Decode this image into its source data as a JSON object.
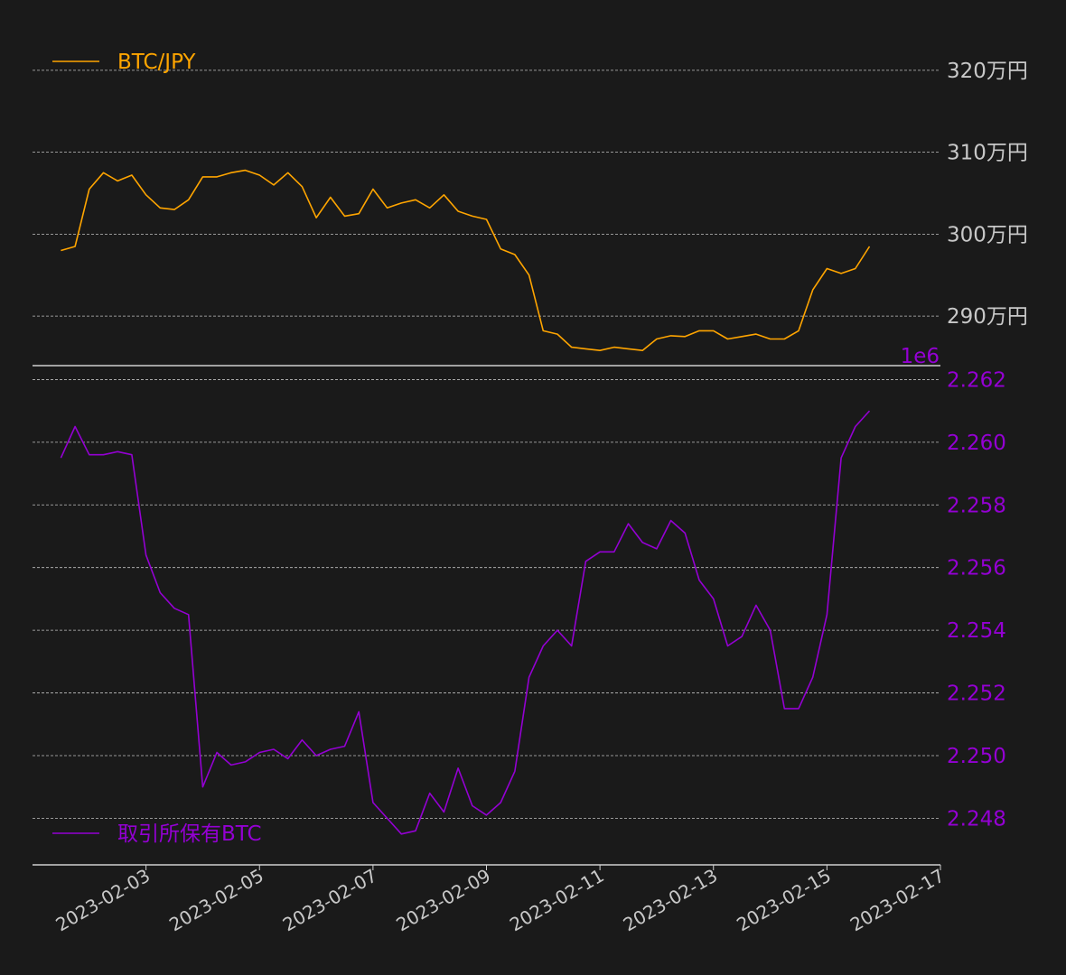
{
  "chart_data": [
    {
      "type": "line",
      "series": [
        {
          "name": "BTC/JPY",
          "color": "#ffa500",
          "x": [
            "2023-02-01T12:00",
            "2023-02-01T18:00",
            "2023-02-02T00:00",
            "2023-02-02T06:00",
            "2023-02-02T12:00",
            "2023-02-02T18:00",
            "2023-02-03T00:00",
            "2023-02-03T06:00",
            "2023-02-03T12:00",
            "2023-02-03T18:00",
            "2023-02-04T00:00",
            "2023-02-04T06:00",
            "2023-02-04T12:00",
            "2023-02-04T18:00",
            "2023-02-05T00:00",
            "2023-02-05T06:00",
            "2023-02-05T12:00",
            "2023-02-05T18:00",
            "2023-02-06T00:00",
            "2023-02-06T06:00",
            "2023-02-06T12:00",
            "2023-02-06T18:00",
            "2023-02-07T00:00",
            "2023-02-07T06:00",
            "2023-02-07T12:00",
            "2023-02-07T18:00",
            "2023-02-08T00:00",
            "2023-02-08T06:00",
            "2023-02-08T12:00",
            "2023-02-08T18:00",
            "2023-02-09T00:00",
            "2023-02-09T06:00",
            "2023-02-09T12:00",
            "2023-02-09T18:00",
            "2023-02-10T00:00",
            "2023-02-10T06:00",
            "2023-02-10T12:00",
            "2023-02-10T18:00",
            "2023-02-11T00:00",
            "2023-02-11T06:00",
            "2023-02-11T12:00",
            "2023-02-11T18:00",
            "2023-02-12T00:00",
            "2023-02-12T06:00",
            "2023-02-12T12:00",
            "2023-02-12T18:00",
            "2023-02-13T00:00",
            "2023-02-13T06:00",
            "2023-02-13T12:00",
            "2023-02-13T18:00",
            "2023-02-14T00:00",
            "2023-02-14T06:00",
            "2023-02-14T12:00",
            "2023-02-14T18:00",
            "2023-02-15T00:00",
            "2023-02-15T06:00",
            "2023-02-15T12:00",
            "2023-02-15T18:00"
          ],
          "values": [
            2980000,
            2985000,
            3055000,
            3075000,
            3065000,
            3072000,
            3048000,
            3032000,
            3030000,
            3042000,
            3070000,
            3070000,
            3075000,
            3078000,
            3072000,
            3060000,
            3075000,
            3058000,
            3020000,
            3045000,
            3022000,
            3025000,
            3055000,
            3032000,
            3038000,
            3042000,
            3032000,
            3048000,
            3028000,
            3022000,
            3018000,
            2982000,
            2975000,
            2950000,
            2882000,
            2878000,
            2862000,
            2860000,
            2858000,
            2862000,
            2860000,
            2858000,
            2872000,
            2876000,
            2875000,
            2882000,
            2882000,
            2872000,
            2875000,
            2878000,
            2872000,
            2872000,
            2882000,
            2932000,
            2958000,
            2952000,
            2958000,
            2985000
          ]
        }
      ],
      "xlim": [
        "2023-02-01T00:00",
        "2023-02-17T00:00"
      ],
      "ylim": [
        2845000,
        3255000
      ],
      "y_ticks": [
        {
          "value": 2900000,
          "label": "290万円"
        },
        {
          "value": 3000000,
          "label": "300万円"
        },
        {
          "value": 3100000,
          "label": "310万円"
        },
        {
          "value": 3200000,
          "label": "320万円"
        }
      ],
      "grid": true,
      "legend": "top-left"
    },
    {
      "type": "line",
      "series": [
        {
          "name": "取引所保有BTC",
          "color": "#9400d3",
          "x": [
            "2023-02-01T12:00",
            "2023-02-01T18:00",
            "2023-02-02T00:00",
            "2023-02-02T06:00",
            "2023-02-02T12:00",
            "2023-02-02T18:00",
            "2023-02-03T00:00",
            "2023-02-03T06:00",
            "2023-02-03T12:00",
            "2023-02-03T18:00",
            "2023-02-04T00:00",
            "2023-02-04T06:00",
            "2023-02-04T12:00",
            "2023-02-04T18:00",
            "2023-02-05T00:00",
            "2023-02-05T06:00",
            "2023-02-05T12:00",
            "2023-02-05T18:00",
            "2023-02-06T00:00",
            "2023-02-06T06:00",
            "2023-02-06T12:00",
            "2023-02-06T18:00",
            "2023-02-07T00:00",
            "2023-02-07T06:00",
            "2023-02-07T12:00",
            "2023-02-07T18:00",
            "2023-02-08T00:00",
            "2023-02-08T06:00",
            "2023-02-08T12:00",
            "2023-02-08T18:00",
            "2023-02-09T00:00",
            "2023-02-09T06:00",
            "2023-02-09T12:00",
            "2023-02-09T18:00",
            "2023-02-10T00:00",
            "2023-02-10T06:00",
            "2023-02-10T12:00",
            "2023-02-10T18:00",
            "2023-02-11T00:00",
            "2023-02-11T06:00",
            "2023-02-11T12:00",
            "2023-02-11T18:00",
            "2023-02-12T00:00",
            "2023-02-12T06:00",
            "2023-02-12T12:00",
            "2023-02-12T18:00",
            "2023-02-13T00:00",
            "2023-02-13T06:00",
            "2023-02-13T12:00",
            "2023-02-13T18:00",
            "2023-02-14T00:00",
            "2023-02-14T06:00",
            "2023-02-14T12:00",
            "2023-02-14T18:00",
            "2023-02-15T00:00",
            "2023-02-15T06:00",
            "2023-02-15T12:00",
            "2023-02-15T18:00"
          ],
          "values": [
            2259500,
            2260500,
            2259600,
            2259600,
            2259700,
            2259600,
            2256400,
            2255200,
            2254700,
            2254500,
            2249000,
            2250100,
            2249700,
            2249800,
            2250100,
            2250200,
            2249900,
            2250500,
            2250000,
            2250200,
            2250300,
            2251400,
            2248500,
            2248000,
            2247500,
            2247600,
            2248800,
            2248200,
            2249600,
            2248400,
            2248100,
            2248500,
            2249500,
            2252500,
            2253500,
            2254000,
            2253500,
            2256200,
            2256500,
            2256500,
            2257400,
            2256800,
            2256600,
            2257500,
            2257100,
            2255600,
            2255000,
            2253500,
            2253800,
            2254800,
            2254000,
            2251500,
            2251500,
            2252500,
            2254500,
            2259500,
            2260500,
            2261000
          ]
        }
      ],
      "xlim": [
        "2023-02-01T00:00",
        "2023-02-17T00:00"
      ],
      "ylim": [
        2246600,
        2262300
      ],
      "y_ticks": [
        {
          "value": 2248000,
          "label": "2.248"
        },
        {
          "value": 2250000,
          "label": "2.250"
        },
        {
          "value": 2252000,
          "label": "2.252"
        },
        {
          "value": 2254000,
          "label": "2.254"
        },
        {
          "value": 2256000,
          "label": "2.256"
        },
        {
          "value": 2258000,
          "label": "2.258"
        },
        {
          "value": 2260000,
          "label": "2.260"
        },
        {
          "value": 2262000,
          "label": "2.262"
        }
      ],
      "offset_label": "1e6",
      "grid": true,
      "legend": "bottom-left"
    }
  ],
  "x_tick_labels": [
    "2023-02-03",
    "2023-02-05",
    "2023-02-07",
    "2023-02-09",
    "2023-02-11",
    "2023-02-13",
    "2023-02-15",
    "2023-02-17"
  ],
  "x_tick_dates": [
    "2023-02-03",
    "2023-02-05",
    "2023-02-07",
    "2023-02-09",
    "2023-02-11",
    "2023-02-13",
    "2023-02-15",
    "2023-02-17"
  ]
}
